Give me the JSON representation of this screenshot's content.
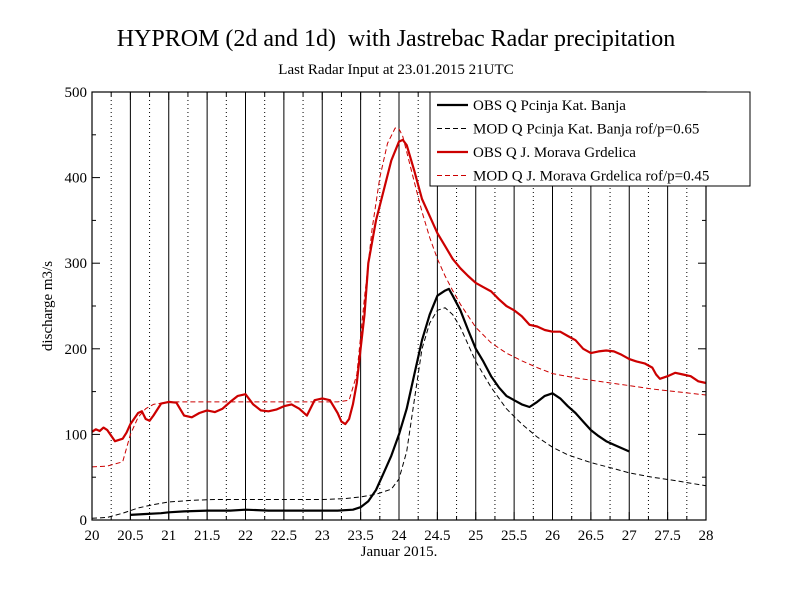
{
  "chart_data": {
    "type": "line",
    "title": "HYPROM (2d and 1d)  with Jastrebac Radar precipitation",
    "subtitle": "Last Radar Input at 23.01.2015 21UTC",
    "xlabel": "Januar 2015.",
    "ylabel": "discharge m3/s",
    "xlim": [
      20,
      28
    ],
    "ylim": [
      0,
      500
    ],
    "x_ticks": [
      20,
      20.5,
      21,
      21.5,
      22,
      22.5,
      23,
      23.5,
      24,
      24.5,
      25,
      25.5,
      26,
      26.5,
      27,
      27.5,
      28
    ],
    "x_tick_labels": [
      "20",
      "20.5",
      "21",
      "21.5",
      "22",
      "22.5",
      "23",
      "23.5",
      "24",
      "24.5",
      "25",
      "25.5",
      "26",
      "26.5",
      "27",
      "27.5",
      "28"
    ],
    "y_ticks": [
      0,
      100,
      200,
      300,
      400,
      500
    ],
    "y_tick_labels": [
      "0",
      "100",
      "200",
      "300",
      "400",
      "500"
    ],
    "grid": "vertical lines: solid at every 0.5 day, dotted in between",
    "legend_position": "top-right",
    "series": [
      {
        "name": "OBS Q Pcinja Kat. Banja",
        "color": "#000000",
        "style": "solid",
        "x": [
          20.5,
          20.7,
          20.9,
          21.0,
          21.2,
          21.5,
          21.8,
          22.0,
          22.3,
          22.6,
          22.9,
          23.0,
          23.2,
          23.4,
          23.5,
          23.6,
          23.7,
          23.8,
          23.9,
          24.0,
          24.1,
          24.2,
          24.3,
          24.4,
          24.5,
          24.6,
          24.65,
          24.7,
          24.8,
          24.9,
          25.0,
          25.1,
          25.2,
          25.3,
          25.4,
          25.5,
          25.6,
          25.7,
          25.8,
          25.9,
          26.0,
          26.1,
          26.2,
          26.3,
          26.4,
          26.5,
          26.6,
          26.7,
          26.8,
          26.9,
          27.0
        ],
        "y": [
          6,
          7,
          8,
          9,
          10,
          11,
          11,
          12,
          11,
          11,
          11,
          11,
          11,
          12,
          15,
          22,
          35,
          55,
          75,
          100,
          130,
          170,
          210,
          240,
          262,
          268,
          270,
          262,
          245,
          222,
          200,
          185,
          168,
          155,
          145,
          140,
          135,
          132,
          138,
          145,
          148,
          142,
          133,
          125,
          115,
          105,
          98,
          92,
          88,
          84,
          80
        ]
      },
      {
        "name": "MOD Q Pcinja Kat. Banja rof/p=0.65",
        "color": "#000000",
        "style": "dashed",
        "x": [
          20.0,
          20.2,
          20.4,
          20.6,
          20.8,
          21.0,
          21.3,
          21.6,
          22.0,
          22.5,
          23.0,
          23.3,
          23.5,
          23.7,
          23.9,
          24.0,
          24.1,
          24.2,
          24.3,
          24.4,
          24.5,
          24.6,
          24.7,
          24.8,
          24.9,
          25.0,
          25.2,
          25.4,
          25.6,
          25.8,
          26.0,
          26.2,
          26.5,
          26.8,
          27.0,
          27.3,
          27.6,
          27.8,
          28.0
        ],
        "y": [
          2,
          3,
          8,
          14,
          18,
          21,
          23,
          24,
          24,
          24,
          24,
          25,
          27,
          30,
          36,
          48,
          80,
          140,
          200,
          230,
          245,
          248,
          240,
          225,
          205,
          185,
          155,
          130,
          112,
          97,
          85,
          76,
          67,
          60,
          55,
          50,
          46,
          43,
          40
        ]
      },
      {
        "name": "OBS Q J. Morava Grdelica",
        "color": "#cc0000",
        "style": "solid",
        "x": [
          20.0,
          20.05,
          20.1,
          20.15,
          20.2,
          20.3,
          20.4,
          20.45,
          20.5,
          20.6,
          20.65,
          20.7,
          20.75,
          20.8,
          20.9,
          21.0,
          21.1,
          21.2,
          21.3,
          21.4,
          21.5,
          21.6,
          21.7,
          21.8,
          21.9,
          22.0,
          22.1,
          22.2,
          22.3,
          22.4,
          22.5,
          22.6,
          22.7,
          22.8,
          22.9,
          23.0,
          23.1,
          23.2,
          23.25,
          23.3,
          23.35,
          23.4,
          23.45,
          23.5,
          23.55,
          23.6,
          23.7,
          23.8,
          23.9,
          24.0,
          24.05,
          24.1,
          24.2,
          24.3,
          24.4,
          24.5,
          24.6,
          24.7,
          24.8,
          24.9,
          25.0,
          25.1,
          25.2,
          25.3,
          25.4,
          25.5,
          25.6,
          25.7,
          25.8,
          25.9,
          26.0,
          26.1,
          26.2,
          26.3,
          26.4,
          26.5,
          26.6,
          26.7,
          26.8,
          26.9,
          27.0,
          27.1,
          27.2,
          27.3,
          27.35,
          27.4,
          27.5,
          27.6,
          27.7,
          27.8,
          27.9,
          28.0
        ],
        "y": [
          103,
          106,
          104,
          108,
          105,
          92,
          95,
          102,
          112,
          125,
          127,
          118,
          116,
          122,
          136,
          138,
          137,
          122,
          120,
          125,
          128,
          126,
          130,
          138,
          145,
          147,
          135,
          128,
          127,
          129,
          133,
          135,
          130,
          122,
          140,
          142,
          140,
          125,
          115,
          112,
          118,
          135,
          160,
          200,
          240,
          300,
          350,
          385,
          420,
          442,
          444,
          438,
          408,
          375,
          355,
          335,
          320,
          305,
          294,
          285,
          277,
          272,
          267,
          258,
          250,
          245,
          238,
          228,
          226,
          222,
          220,
          220,
          215,
          210,
          200,
          195,
          197,
          198,
          197,
          193,
          188,
          185,
          183,
          178,
          170,
          165,
          168,
          172,
          170,
          168,
          162,
          160
        ]
      },
      {
        "name": "MOD Q J. Morava Grdelica rof/p=0.45",
        "color": "#cc0000",
        "style": "dashed",
        "x": [
          20.0,
          20.2,
          20.4,
          20.5,
          20.6,
          20.7,
          20.8,
          21.0,
          21.5,
          22.0,
          22.5,
          23.0,
          23.2,
          23.35,
          23.45,
          23.55,
          23.65,
          23.75,
          23.85,
          23.95,
          24.0,
          24.05,
          24.1,
          24.2,
          24.3,
          24.4,
          24.5,
          24.6,
          24.7,
          24.8,
          25.0,
          25.2,
          25.4,
          25.6,
          25.8,
          26.0,
          26.3,
          26.6,
          27.0,
          27.3,
          27.6,
          28.0
        ],
        "y": [
          62,
          63,
          68,
          100,
          120,
          130,
          135,
          138,
          138,
          138,
          138,
          138,
          138,
          140,
          170,
          260,
          340,
          400,
          440,
          458,
          457,
          448,
          430,
          395,
          360,
          330,
          305,
          285,
          268,
          252,
          225,
          207,
          195,
          186,
          178,
          171,
          166,
          162,
          157,
          153,
          150,
          146
        ]
      }
    ]
  }
}
